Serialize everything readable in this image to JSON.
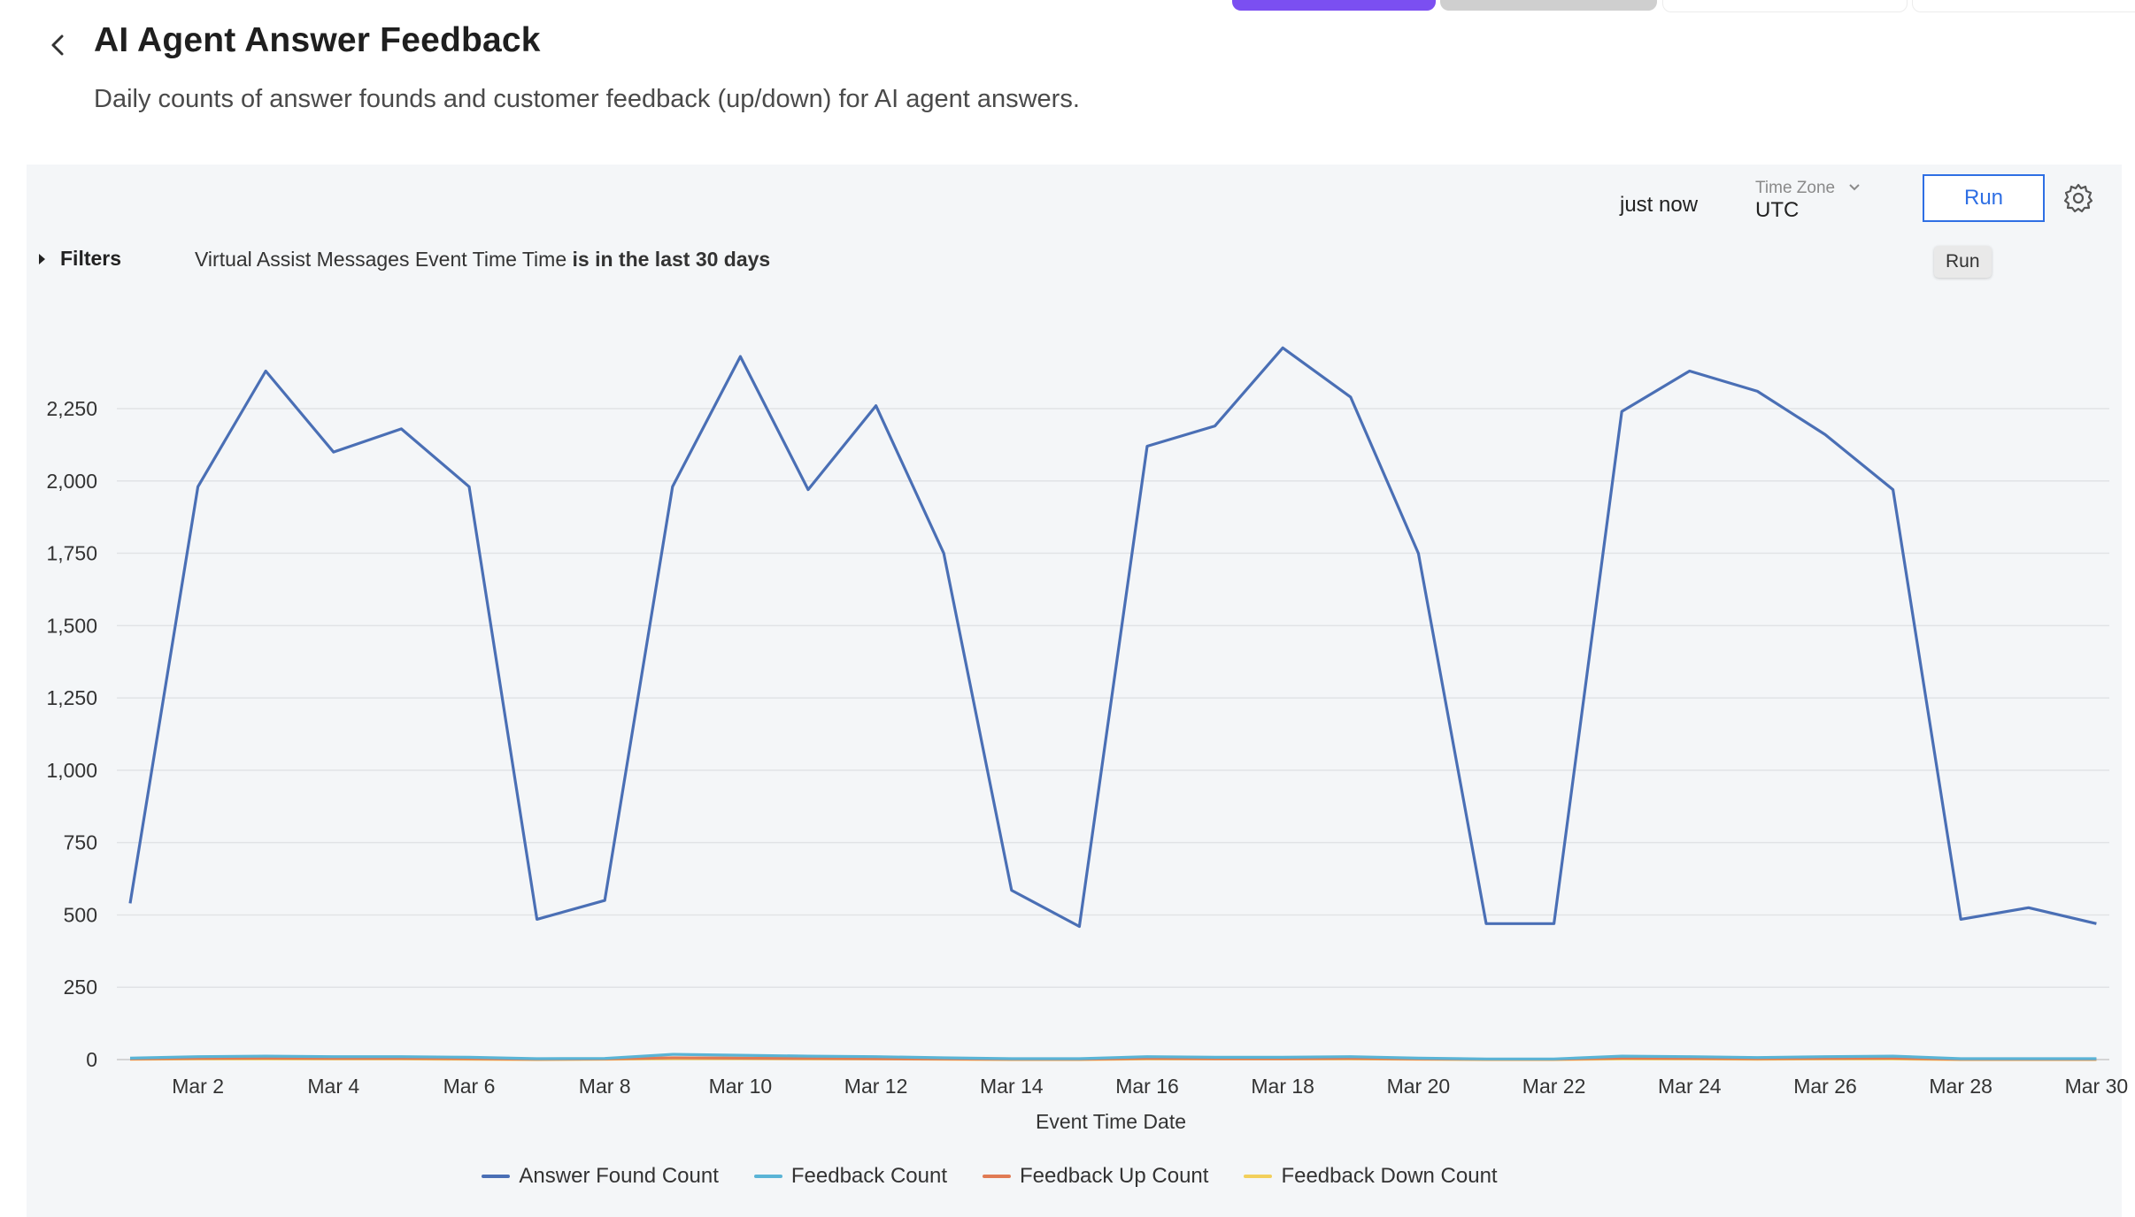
{
  "page": {
    "title": "AI Agent Answer Feedback",
    "subtitle": "Daily counts of answer founds and customer feedback (up/down) for AI agent answers."
  },
  "toolbar": {
    "last_run": "just now",
    "timezone_label": "Time Zone",
    "timezone_value": "UTC",
    "run_label": "Run",
    "run_tooltip": "Run"
  },
  "filters": {
    "label": "Filters",
    "field": "Virtual Assist Messages Event Time Time",
    "condition": "is in the last 30 days"
  },
  "icons": {
    "back": "chevron-left-icon",
    "settings": "gear-icon",
    "filters": "caret-right-icon",
    "timezone": "chevron-down-icon"
  },
  "colors": {
    "accent": "#7b4ff1",
    "run": "#2f6fe4"
  },
  "chart_data": {
    "type": "line",
    "xlabel": "Event Time Date",
    "ylabel": "",
    "ylim": [
      0,
      2500
    ],
    "yticks": [
      "0",
      "250",
      "500",
      "750",
      "1,000",
      "1,250",
      "1,500",
      "1,750",
      "2,000",
      "2,250"
    ],
    "grid": true,
    "legend_position": "bottom",
    "x": [
      "Mar 1",
      "Mar 2",
      "Mar 3",
      "Mar 4",
      "Mar 5",
      "Mar 6",
      "Mar 7",
      "Mar 8",
      "Mar 9",
      "Mar 10",
      "Mar 11",
      "Mar 12",
      "Mar 13",
      "Mar 14",
      "Mar 15",
      "Mar 16",
      "Mar 17",
      "Mar 18",
      "Mar 19",
      "Mar 20",
      "Mar 21",
      "Mar 22",
      "Mar 23",
      "Mar 24",
      "Mar 25",
      "Mar 26",
      "Mar 27",
      "Mar 28",
      "Mar 29",
      "Mar 30"
    ],
    "x_tick_labels": [
      "Mar 2",
      "Mar 4",
      "Mar 6",
      "Mar 8",
      "Mar 10",
      "Mar 12",
      "Mar 14",
      "Mar 16",
      "Mar 18",
      "Mar 20",
      "Mar 22",
      "Mar 24",
      "Mar 26",
      "Mar 28",
      "Mar 30"
    ],
    "series": [
      {
        "name": "Answer Found Count",
        "color": "#4a6fb5",
        "values": [
          540,
          1980,
          2380,
          2100,
          2180,
          1980,
          485,
          550,
          1980,
          2430,
          1970,
          2260,
          1750,
          585,
          460,
          2120,
          2190,
          2460,
          2290,
          1750,
          470,
          470,
          2240,
          2380,
          2310,
          2160,
          1970,
          485,
          525,
          470
        ]
      },
      {
        "name": "Feedback Count",
        "color": "#5ab4d6",
        "values": [
          5,
          10,
          12,
          10,
          10,
          8,
          3,
          4,
          18,
          15,
          12,
          10,
          6,
          3,
          3,
          10,
          8,
          8,
          10,
          5,
          2,
          2,
          12,
          10,
          7,
          10,
          12,
          3,
          3,
          3
        ]
      },
      {
        "name": "Feedback Up Count",
        "color": "#e07b54",
        "values": [
          2,
          4,
          5,
          4,
          4,
          3,
          1,
          2,
          6,
          5,
          4,
          3,
          2,
          1,
          1,
          4,
          3,
          3,
          4,
          2,
          1,
          1,
          5,
          4,
          3,
          4,
          5,
          1,
          1,
          1
        ]
      },
      {
        "name": "Feedback Down Count",
        "color": "#f2cf5b",
        "values": [
          1,
          2,
          2,
          2,
          2,
          1,
          0,
          1,
          3,
          3,
          2,
          2,
          1,
          0,
          0,
          2,
          2,
          2,
          2,
          1,
          0,
          0,
          2,
          2,
          1,
          2,
          2,
          0,
          0,
          0
        ]
      }
    ]
  }
}
